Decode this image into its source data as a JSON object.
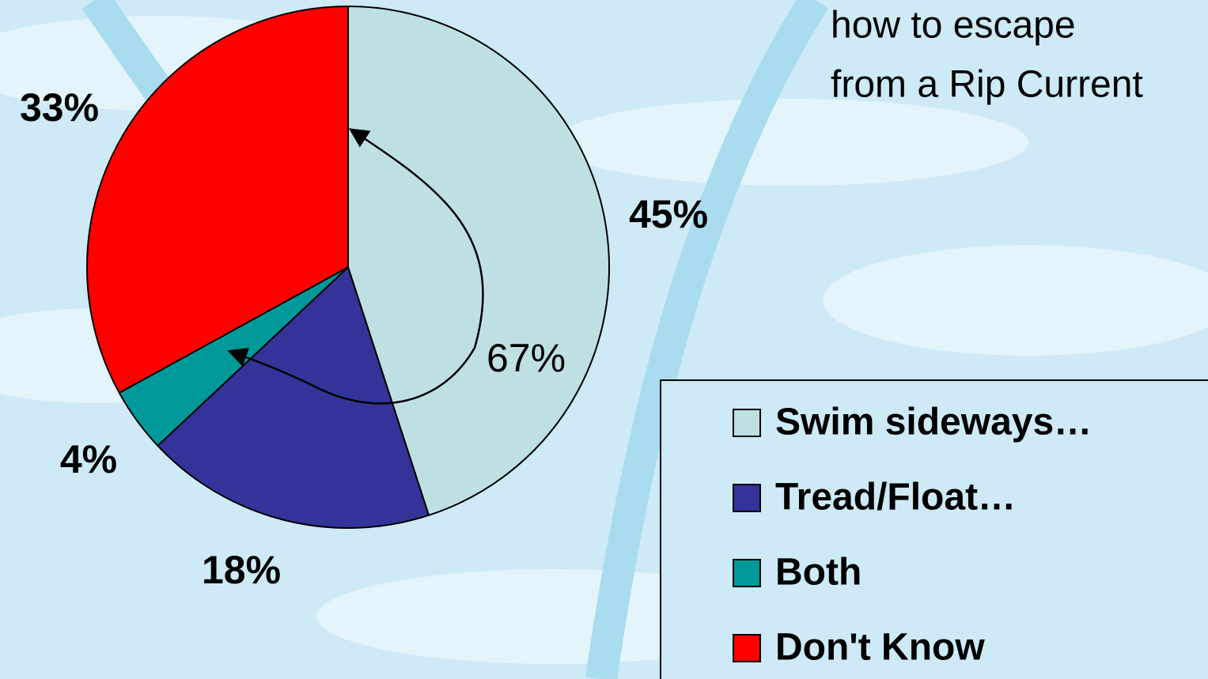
{
  "chart_data": {
    "type": "pie",
    "title_lines": [
      "how to escape",
      "from a Rip Current"
    ],
    "categories": [
      "Swim sideways…",
      "Tread/Float…",
      "Both",
      "Don't Know"
    ],
    "values": [
      45,
      18,
      4,
      33
    ],
    "value_labels": [
      "45%",
      "18%",
      "4%",
      "33%"
    ],
    "colors": [
      "#bfe0e3",
      "#333399",
      "#009999",
      "#ff0000"
    ],
    "annotation": "67%",
    "legend": "right"
  }
}
